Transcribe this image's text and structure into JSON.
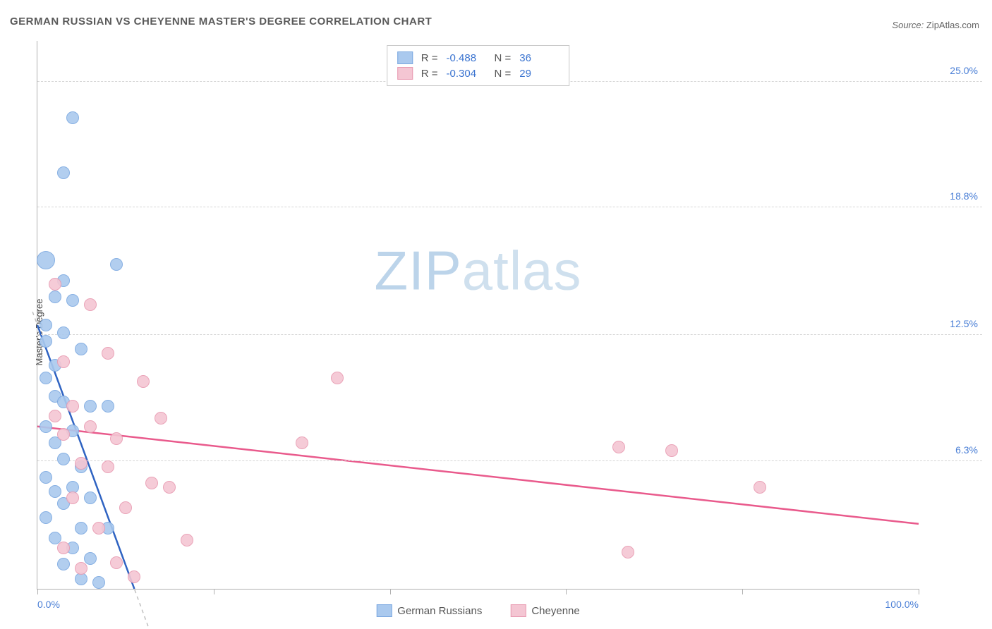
{
  "title": "GERMAN RUSSIAN VS CHEYENNE MASTER'S DEGREE CORRELATION CHART",
  "source": {
    "label": "Source:",
    "value": "ZipAtlas.com"
  },
  "watermark": {
    "zip": "ZIP",
    "atlas": "atlas"
  },
  "chart": {
    "type": "scatter",
    "ylabel": "Master's Degree",
    "xmin": 0,
    "xmax": 100,
    "ymin": 0,
    "ymax": 27,
    "background_color": "#ffffff",
    "grid_color": "#d5d5d5",
    "axis_color": "#b0b0b0",
    "tick_label_color": "#4a7fd6",
    "ytick_positions": [
      6.3,
      12.5,
      18.8,
      25.0
    ],
    "ytick_labels": [
      "6.3%",
      "12.5%",
      "18.8%",
      "25.0%"
    ],
    "xtick_positions": [
      0,
      20,
      40,
      60,
      80,
      100
    ],
    "xtick_labels_visible": {
      "0": "0.0%",
      "100": "100.0%"
    },
    "marker_radius": 9,
    "marker_border_width": 1.5,
    "marker_fill_opacity": 0.35,
    "trend_line_width": 2.5,
    "trend_dash_color": "#bfbfbf",
    "series": {
      "german_russians": {
        "label": "German Russians",
        "color_border": "#7ba8e0",
        "color_fill": "#aac9ee",
        "trend_color": "#2f63c2",
        "stats": {
          "R": "-0.488",
          "N": "36"
        },
        "trend": {
          "x1": 0,
          "y1": 13.0,
          "x2": 11,
          "y2": 0
        },
        "points": [
          {
            "x": 4,
            "y": 23.2
          },
          {
            "x": 3,
            "y": 20.5
          },
          {
            "x": 1,
            "y": 16.2,
            "r": 13
          },
          {
            "x": 9,
            "y": 16.0
          },
          {
            "x": 3,
            "y": 15.2
          },
          {
            "x": 2,
            "y": 14.4
          },
          {
            "x": 4,
            "y": 14.2
          },
          {
            "x": 1,
            "y": 13.0
          },
          {
            "x": 3,
            "y": 12.6
          },
          {
            "x": 1,
            "y": 12.2
          },
          {
            "x": 5,
            "y": 11.8
          },
          {
            "x": 2,
            "y": 11.0
          },
          {
            "x": 1,
            "y": 10.4
          },
          {
            "x": 2,
            "y": 9.5
          },
          {
            "x": 3,
            "y": 9.2
          },
          {
            "x": 6,
            "y": 9.0
          },
          {
            "x": 8,
            "y": 9.0
          },
          {
            "x": 1,
            "y": 8.0
          },
          {
            "x": 4,
            "y": 7.8
          },
          {
            "x": 2,
            "y": 7.2
          },
          {
            "x": 3,
            "y": 6.4
          },
          {
            "x": 5,
            "y": 6.0
          },
          {
            "x": 1,
            "y": 5.5
          },
          {
            "x": 4,
            "y": 5.0
          },
          {
            "x": 2,
            "y": 4.8
          },
          {
            "x": 6,
            "y": 4.5
          },
          {
            "x": 3,
            "y": 4.2
          },
          {
            "x": 1,
            "y": 3.5
          },
          {
            "x": 5,
            "y": 3.0
          },
          {
            "x": 8,
            "y": 3.0
          },
          {
            "x": 2,
            "y": 2.5
          },
          {
            "x": 4,
            "y": 2.0
          },
          {
            "x": 6,
            "y": 1.5
          },
          {
            "x": 3,
            "y": 1.2
          },
          {
            "x": 5,
            "y": 0.5
          },
          {
            "x": 7,
            "y": 0.3
          }
        ]
      },
      "cheyenne": {
        "label": "Cheyenne",
        "color_border": "#e89ab1",
        "color_fill": "#f4c6d3",
        "trend_color": "#e95a8c",
        "stats": {
          "R": "-0.304",
          "N": "29"
        },
        "trend": {
          "x1": 0,
          "y1": 8.0,
          "x2": 100,
          "y2": 3.2
        },
        "points": [
          {
            "x": 2,
            "y": 15.0
          },
          {
            "x": 6,
            "y": 14.0
          },
          {
            "x": 8,
            "y": 11.6
          },
          {
            "x": 3,
            "y": 11.2
          },
          {
            "x": 12,
            "y": 10.2
          },
          {
            "x": 34,
            "y": 10.4
          },
          {
            "x": 4,
            "y": 9.0
          },
          {
            "x": 2,
            "y": 8.5
          },
          {
            "x": 14,
            "y": 8.4
          },
          {
            "x": 6,
            "y": 8.0
          },
          {
            "x": 3,
            "y": 7.6
          },
          {
            "x": 9,
            "y": 7.4
          },
          {
            "x": 30,
            "y": 7.2
          },
          {
            "x": 66,
            "y": 7.0
          },
          {
            "x": 72,
            "y": 6.8
          },
          {
            "x": 5,
            "y": 6.2
          },
          {
            "x": 8,
            "y": 6.0
          },
          {
            "x": 13,
            "y": 5.2
          },
          {
            "x": 15,
            "y": 5.0
          },
          {
            "x": 82,
            "y": 5.0
          },
          {
            "x": 4,
            "y": 4.5
          },
          {
            "x": 10,
            "y": 4.0
          },
          {
            "x": 7,
            "y": 3.0
          },
          {
            "x": 17,
            "y": 2.4
          },
          {
            "x": 67,
            "y": 1.8
          },
          {
            "x": 9,
            "y": 1.3
          },
          {
            "x": 5,
            "y": 1.0
          },
          {
            "x": 11,
            "y": 0.6
          },
          {
            "x": 3,
            "y": 2.0
          }
        ]
      }
    },
    "legend_top": {
      "R_label": "R =",
      "N_label": "N ="
    },
    "legend_bottom": [
      "german_russians",
      "cheyenne"
    ]
  }
}
